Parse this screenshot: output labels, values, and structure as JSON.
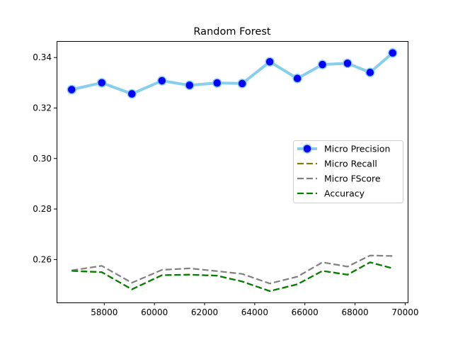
{
  "chart_data": {
    "type": "line",
    "title": "Random Forest",
    "xlabel": "",
    "ylabel": "",
    "xlim": [
      56100,
      70100
    ],
    "ylim": [
      0.243,
      0.3465
    ],
    "x_ticks": [
      58000,
      60000,
      62000,
      64000,
      66000,
      68000,
      70000
    ],
    "y_ticks": [
      0.26,
      0.28,
      0.3,
      0.32,
      0.34
    ],
    "y_tick_labels": [
      "0.26",
      "0.28",
      "0.30",
      "0.32",
      "0.34"
    ],
    "grid": false,
    "legend_position": "center-right",
    "x": [
      56700,
      57900,
      59100,
      60300,
      61400,
      62500,
      63500,
      64600,
      65700,
      66700,
      67700,
      68600,
      69500
    ],
    "series": [
      {
        "name": "Micro Precision",
        "style": "line-with-markers",
        "color": "#87ceeb",
        "marker_color": "#0000ff",
        "values": [
          0.3273,
          0.33,
          0.3256,
          0.3308,
          0.329,
          0.3299,
          0.3297,
          0.3383,
          0.3317,
          0.3372,
          0.3377,
          0.3341,
          0.3418
        ]
      },
      {
        "name": "Micro Recall",
        "style": "dashed",
        "color": "#808000",
        "values": [
          0.2555,
          0.255,
          0.2482,
          0.2538,
          0.254,
          0.2536,
          0.2513,
          0.2475,
          0.2502,
          0.2555,
          0.254,
          0.2589,
          0.2565
        ]
      },
      {
        "name": "Micro FScore",
        "style": "dashed",
        "color": "#808080",
        "values": [
          0.2557,
          0.2575,
          0.2508,
          0.2559,
          0.2565,
          0.2554,
          0.2543,
          0.2505,
          0.2532,
          0.2589,
          0.2572,
          0.2616,
          0.2614
        ]
      },
      {
        "name": "Accuracy",
        "style": "dashed",
        "color": "#008000",
        "values": [
          0.2555,
          0.255,
          0.2482,
          0.2538,
          0.254,
          0.2536,
          0.2513,
          0.2475,
          0.2502,
          0.2555,
          0.254,
          0.2589,
          0.2565
        ]
      }
    ]
  }
}
